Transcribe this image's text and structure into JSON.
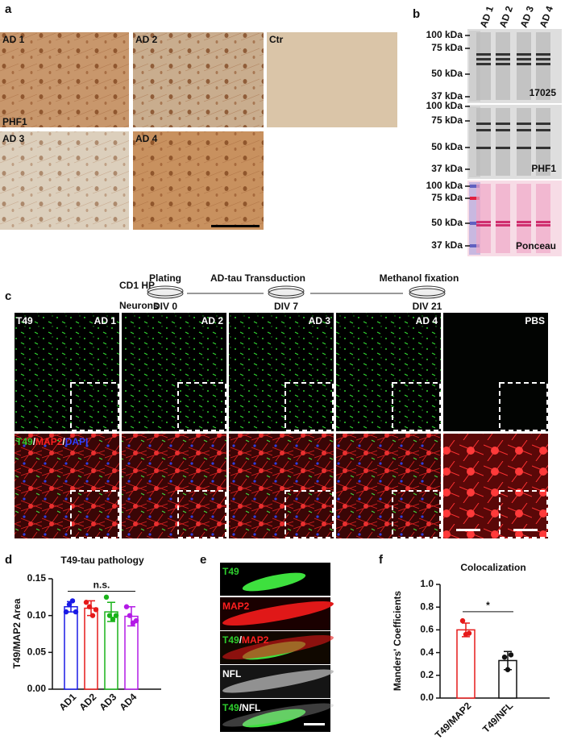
{
  "panel_labels": [
    "a",
    "b",
    "c",
    "d",
    "e",
    "f"
  ],
  "panel_a": {
    "tiles": [
      "AD 1",
      "AD 2",
      "Ctr",
      "AD 3",
      "AD 4"
    ],
    "stain": "PHF1"
  },
  "panel_b": {
    "lanes": [
      "AD 1",
      "AD 2",
      "AD 3",
      "AD 4"
    ],
    "blots": [
      {
        "label": "17025",
        "markers": [
          "100 kDa",
          "75 kDa",
          "50 kDa",
          "37 kDa"
        ]
      },
      {
        "label": "PHF1",
        "markers": [
          "100 kDa",
          "75 kDa",
          "50 kDa",
          "37 kDa"
        ]
      },
      {
        "label": "Ponceau",
        "markers": [
          "100 kDa",
          "75 kDa",
          "50 kDa",
          "37 kDa"
        ]
      }
    ]
  },
  "panel_c": {
    "cells": [
      "CD1 HP",
      "Neurons"
    ],
    "steps": [
      {
        "name": "Plating",
        "day": "DIV 0"
      },
      {
        "name": "AD-tau Transduction",
        "day": "DIV 7"
      },
      {
        "name": "Methanol fixation",
        "day": "DIV 21"
      }
    ],
    "columns": [
      "AD 1",
      "AD 2",
      "AD 3",
      "AD 4",
      "PBS"
    ],
    "row_labels": [
      [
        "T49"
      ],
      [
        "T49",
        "/",
        "MAP2",
        "/",
        "DAPI"
      ]
    ]
  },
  "panel_e": {
    "rows": [
      [
        "T49"
      ],
      [
        "MAP2"
      ],
      [
        "T49",
        "/",
        "MAP2"
      ],
      [
        "NFL"
      ],
      [
        "T49",
        "/",
        "NFL"
      ]
    ]
  },
  "chart_data": [
    {
      "type": "bar",
      "title": "T49-tau pathology",
      "ylabel": "T49/MAP2 Area",
      "categories": [
        "AD1",
        "AD2",
        "AD3",
        "AD4"
      ],
      "values": [
        0.112,
        0.11,
        0.105,
        0.099
      ],
      "errors": [
        0.007,
        0.01,
        0.013,
        0.013
      ],
      "points": [
        [
          0.105,
          0.115,
          0.12,
          0.105
        ],
        [
          0.118,
          0.112,
          0.1,
          0.108
        ],
        [
          0.125,
          0.1,
          0.095,
          0.1
        ],
        [
          0.112,
          0.1,
          0.09,
          0.093
        ]
      ],
      "colors": [
        "#1a1ae6",
        "#e61a1a",
        "#1ab31a",
        "#b31ae6"
      ],
      "ylim": [
        0,
        0.15
      ],
      "yticks": [
        {
          "value": 0,
          "label": "0.00"
        },
        {
          "value": 0.05,
          "label": "0.05"
        },
        {
          "value": 0.1,
          "label": "0.10"
        },
        {
          "value": 0.15,
          "label": "0.15"
        }
      ],
      "annotation": "n.s."
    },
    {
      "type": "bar",
      "title": "Colocalization",
      "ylabel": "Manders' Coefficients",
      "categories": [
        "T49/MAP2",
        "T49/NFL"
      ],
      "values": [
        0.6,
        0.33
      ],
      "errors": [
        0.06,
        0.08
      ],
      "points": [
        [
          0.68,
          0.56,
          0.57
        ],
        [
          0.36,
          0.25,
          0.38
        ]
      ],
      "colors": [
        "#e61a1a",
        "#111111"
      ],
      "ylim": [
        0,
        1
      ],
      "yticks": [
        {
          "value": 0,
          "label": "0.0"
        },
        {
          "value": 0.2,
          "label": "0.2"
        },
        {
          "value": 0.4,
          "label": "0.4"
        },
        {
          "value": 0.6,
          "label": "0.6"
        },
        {
          "value": 0.8,
          "label": "0.8"
        },
        {
          "value": 1,
          "label": "1.0"
        }
      ],
      "annotation": "*"
    }
  ]
}
